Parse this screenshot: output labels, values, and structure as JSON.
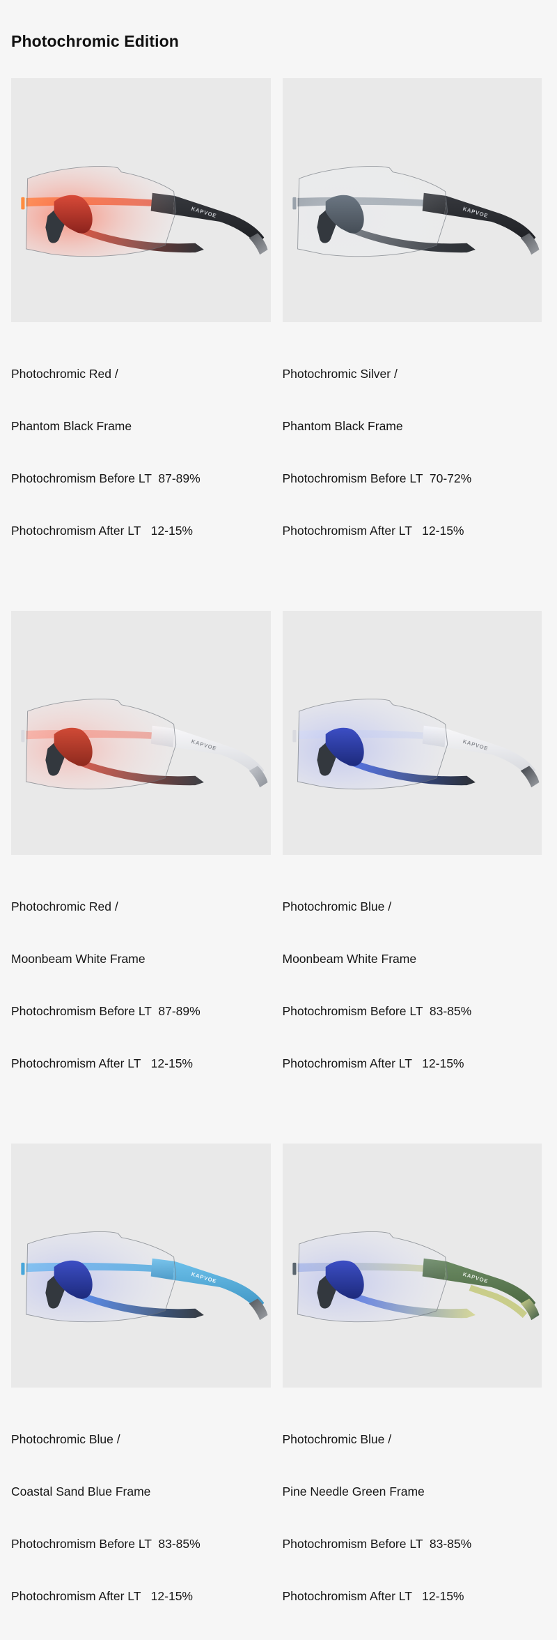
{
  "page": {
    "title": "Photochromic Edition",
    "background": "#f6f6f6",
    "image_background": "#e9e9e9"
  },
  "brand_logo": "KAPVOE",
  "products": [
    {
      "id": "photochromic-red-phantom-black",
      "name": "Photochromic Red /",
      "frame": "Phantom Black Frame",
      "before": "Photochromism Before LT  87-89%",
      "after": "Photochromism After LT   12-15%",
      "colors": {
        "lens": [
          "rgba(255,84,52,0.60)",
          "rgba(255,138,120,0.30)",
          "rgba(241,243,248,0.10)"
        ],
        "band": [
          "#ff8a3c",
          "#e0503c"
        ],
        "sweep": [
          "#b33a2c",
          "#26292e"
        ],
        "nose": [
          "#d84a38",
          "#8c231d"
        ],
        "nose_pad": "#33383e",
        "temple": [
          "#35373c",
          "#1c1e22"
        ],
        "tip": [
          "#55585d",
          "#9b9ea3"
        ],
        "logo": "#c9ccd1",
        "tab": "#ff8c3f"
      }
    },
    {
      "id": "photochromic-silver-phantom-black",
      "name": "Photochromic Silver /",
      "frame": "Phantom Black Frame",
      "before": "Photochromism Before LT  70-72%",
      "after": "Photochromism After LT   12-15%",
      "colors": {
        "lens": [
          "rgba(228,232,238,0.40)",
          "rgba(238,241,246,0.22)",
          "rgba(248,249,252,0.08)"
        ],
        "band": [
          "#838c96",
          "#9aa3ac"
        ],
        "sweep": [
          "#40464e",
          "#23262b"
        ],
        "nose": [
          "#6b7682",
          "#454d56"
        ],
        "nose_pad": "#33383e",
        "temple": [
          "#35373c",
          "#1c1e22"
        ],
        "tip": [
          "#55585d",
          "#9b9ea3"
        ],
        "logo": "#c9ccd1",
        "tab": "#9aa2ab"
      }
    },
    {
      "id": "photochromic-red-moonbeam-white",
      "name": "Photochromic Red /",
      "frame": "Moonbeam White Frame",
      "before": "Photochromism Before LT  87-89%",
      "after": "Photochromism After LT   12-15%",
      "colors": {
        "lens": [
          "rgba(255,122,108,0.42)",
          "rgba(255,172,164,0.22)",
          "rgba(243,244,249,0.08)"
        ],
        "band": [
          "#f4b3a8",
          "#e79c92"
        ],
        "sweep": [
          "#bf3a2b",
          "#33373d"
        ],
        "nose": [
          "#d04a36",
          "#8e2a1e"
        ],
        "nose_pad": "#33383e",
        "temple": [
          "#f7f7f9",
          "#d4d6db"
        ],
        "tip": [
          "#c3c6cc",
          "#8f939a"
        ],
        "logo": "#8b8e94",
        "tab": "#d9dadf"
      }
    },
    {
      "id": "photochromic-blue-moonbeam-white",
      "name": "Photochromic Blue /",
      "frame": "Moonbeam White Frame",
      "before": "Photochromism Before LT  83-85%",
      "after": "Photochromism After LT   12-15%",
      "colors": {
        "lens": [
          "rgba(132,146,244,0.38)",
          "rgba(168,178,250,0.22)",
          "rgba(243,244,250,0.08)"
        ],
        "band": [
          "#e3e7f2",
          "#d7dcea"
        ],
        "sweep": [
          "#2f57d8",
          "#23262b"
        ],
        "nose": [
          "#3c4ec4",
          "#1d2a7c"
        ],
        "nose_pad": "#33383e",
        "temple": [
          "#f7f7f9",
          "#d4d6db"
        ],
        "tip": [
          "#3f4349",
          "#9b9ea3"
        ],
        "logo": "#8b8e94",
        "tab": "#d9dadf"
      }
    },
    {
      "id": "photochromic-blue-coastal-sand-blue",
      "name": "Photochromic Blue /",
      "frame": "Coastal Sand Blue Frame",
      "before": "Photochromism Before LT  83-85%",
      "after": "Photochromism After LT   12-15%",
      "colors": {
        "lens": [
          "rgba(132,146,244,0.36)",
          "rgba(168,178,250,0.20)",
          "rgba(243,244,250,0.08)"
        ],
        "band": [
          "#6fc2ee",
          "#47a6da"
        ],
        "sweep": [
          "#3d7fe8",
          "#2d3238"
        ],
        "nose": [
          "#3c4ec4",
          "#1d2a7c"
        ],
        "nose_pad": "#33383e",
        "temple": [
          "#6cc0ea",
          "#3d93c2"
        ],
        "tip": [
          "#54585d",
          "#9b9ea3"
        ],
        "logo": "#eef6fb",
        "tab": "#47a6da"
      }
    },
    {
      "id": "photochromic-blue-pine-needle-green",
      "name": "Photochromic Blue /",
      "frame": "Pine Needle Green Frame",
      "before": "Photochromism Before LT  83-85%",
      "after": "Photochromism After LT   12-15%",
      "colors": {
        "lens": [
          "rgba(132,146,244,0.36)",
          "rgba(168,178,250,0.20)",
          "rgba(243,244,250,0.08)"
        ],
        "band": [
          "#aebde6",
          "#cfd2a0"
        ],
        "sweep": [
          "#4a6fe0",
          "#d6d795"
        ],
        "nose": [
          "#3c4ec4",
          "#1d2a7c"
        ],
        "nose_pad": "#33383e",
        "temple": [
          "#6b8a63",
          "#49653f"
        ],
        "accent": "#c9cd8a",
        "tip": [
          "#c9cd8a",
          "#44604a"
        ],
        "logo": "#dfe6dd",
        "tab": "#5a656e"
      }
    }
  ]
}
